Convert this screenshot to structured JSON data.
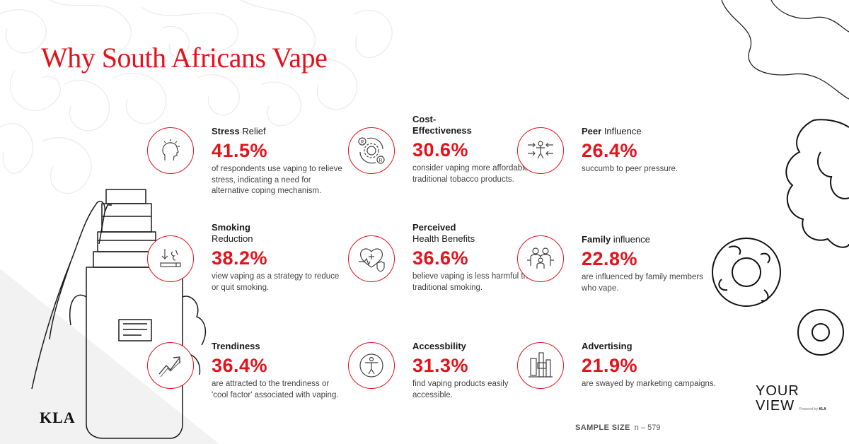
{
  "title": "Why South Africans Vape",
  "colors": {
    "accent": "#e3121b",
    "text": "#1a1a1a"
  },
  "stats": [
    {
      "head_bold": "Stress",
      "head_rest": " Relief",
      "head_bold2": "",
      "head_rest2": "",
      "value": "41.5%",
      "desc": "of respondents use vaping to relieve stress, indicating a need for alternative coping mechanism.",
      "icon": "head-stress-icon"
    },
    {
      "head_bold": "Cost-",
      "head_rest": "",
      "head_bold2": "Effectiveness",
      "head_rest2": "",
      "value": "30.6%",
      "desc": "consider vaping more affordable than traditional tobacco products.",
      "icon": "cost-gear-icon"
    },
    {
      "head_bold": "Peer",
      "head_rest": " Influence",
      "head_bold2": "",
      "head_rest2": "",
      "value": "26.4%",
      "desc": "succumb to peer pressure.",
      "icon": "peer-pressure-icon"
    },
    {
      "head_bold": "Smoking",
      "head_rest": "",
      "head_bold2": "",
      "head_rest2": "Reduction",
      "value": "38.2%",
      "desc": "view vaping as a strategy to reduce or quit smoking.",
      "icon": "cigarette-reduce-icon"
    },
    {
      "head_bold": "Perceived",
      "head_rest": "",
      "head_bold2": "",
      "head_rest2": "Health Benefits",
      "value": "36.6%",
      "desc": "believe vaping is less harmful than traditional smoking.",
      "icon": "heart-health-icon"
    },
    {
      "head_bold": "Family",
      "head_rest": " influence",
      "head_bold2": "",
      "head_rest2": "",
      "value": "22.8%",
      "desc": "are influenced by family members who vape.",
      "icon": "family-icon"
    },
    {
      "head_bold": "Trendiness",
      "head_rest": "",
      "head_bold2": "",
      "head_rest2": "",
      "value": "36.4%",
      "desc": "are attracted to the trendiness or 'cool factor' associated with vaping.",
      "icon": "trend-arrow-icon"
    },
    {
      "head_bold": "Accessbility",
      "head_rest": "",
      "head_bold2": "",
      "head_rest2": "",
      "value": "31.3%",
      "desc": "find vaping products easily accessible.",
      "icon": "accessibility-icon"
    },
    {
      "head_bold": "Advertising",
      "head_rest": "",
      "head_bold2": "",
      "head_rest2": "",
      "value": "21.9%",
      "desc": "are swayed by marketing campaigns.",
      "icon": "billboard-icon"
    }
  ],
  "sample": {
    "label": "SAMPLE SIZE",
    "value": "n – 579"
  },
  "logos": {
    "kla": "KLA",
    "yourview_line1": "YOUR",
    "yourview_line2": "VIEW",
    "powered_by": "Powered by",
    "powered_brand": "KLA"
  }
}
